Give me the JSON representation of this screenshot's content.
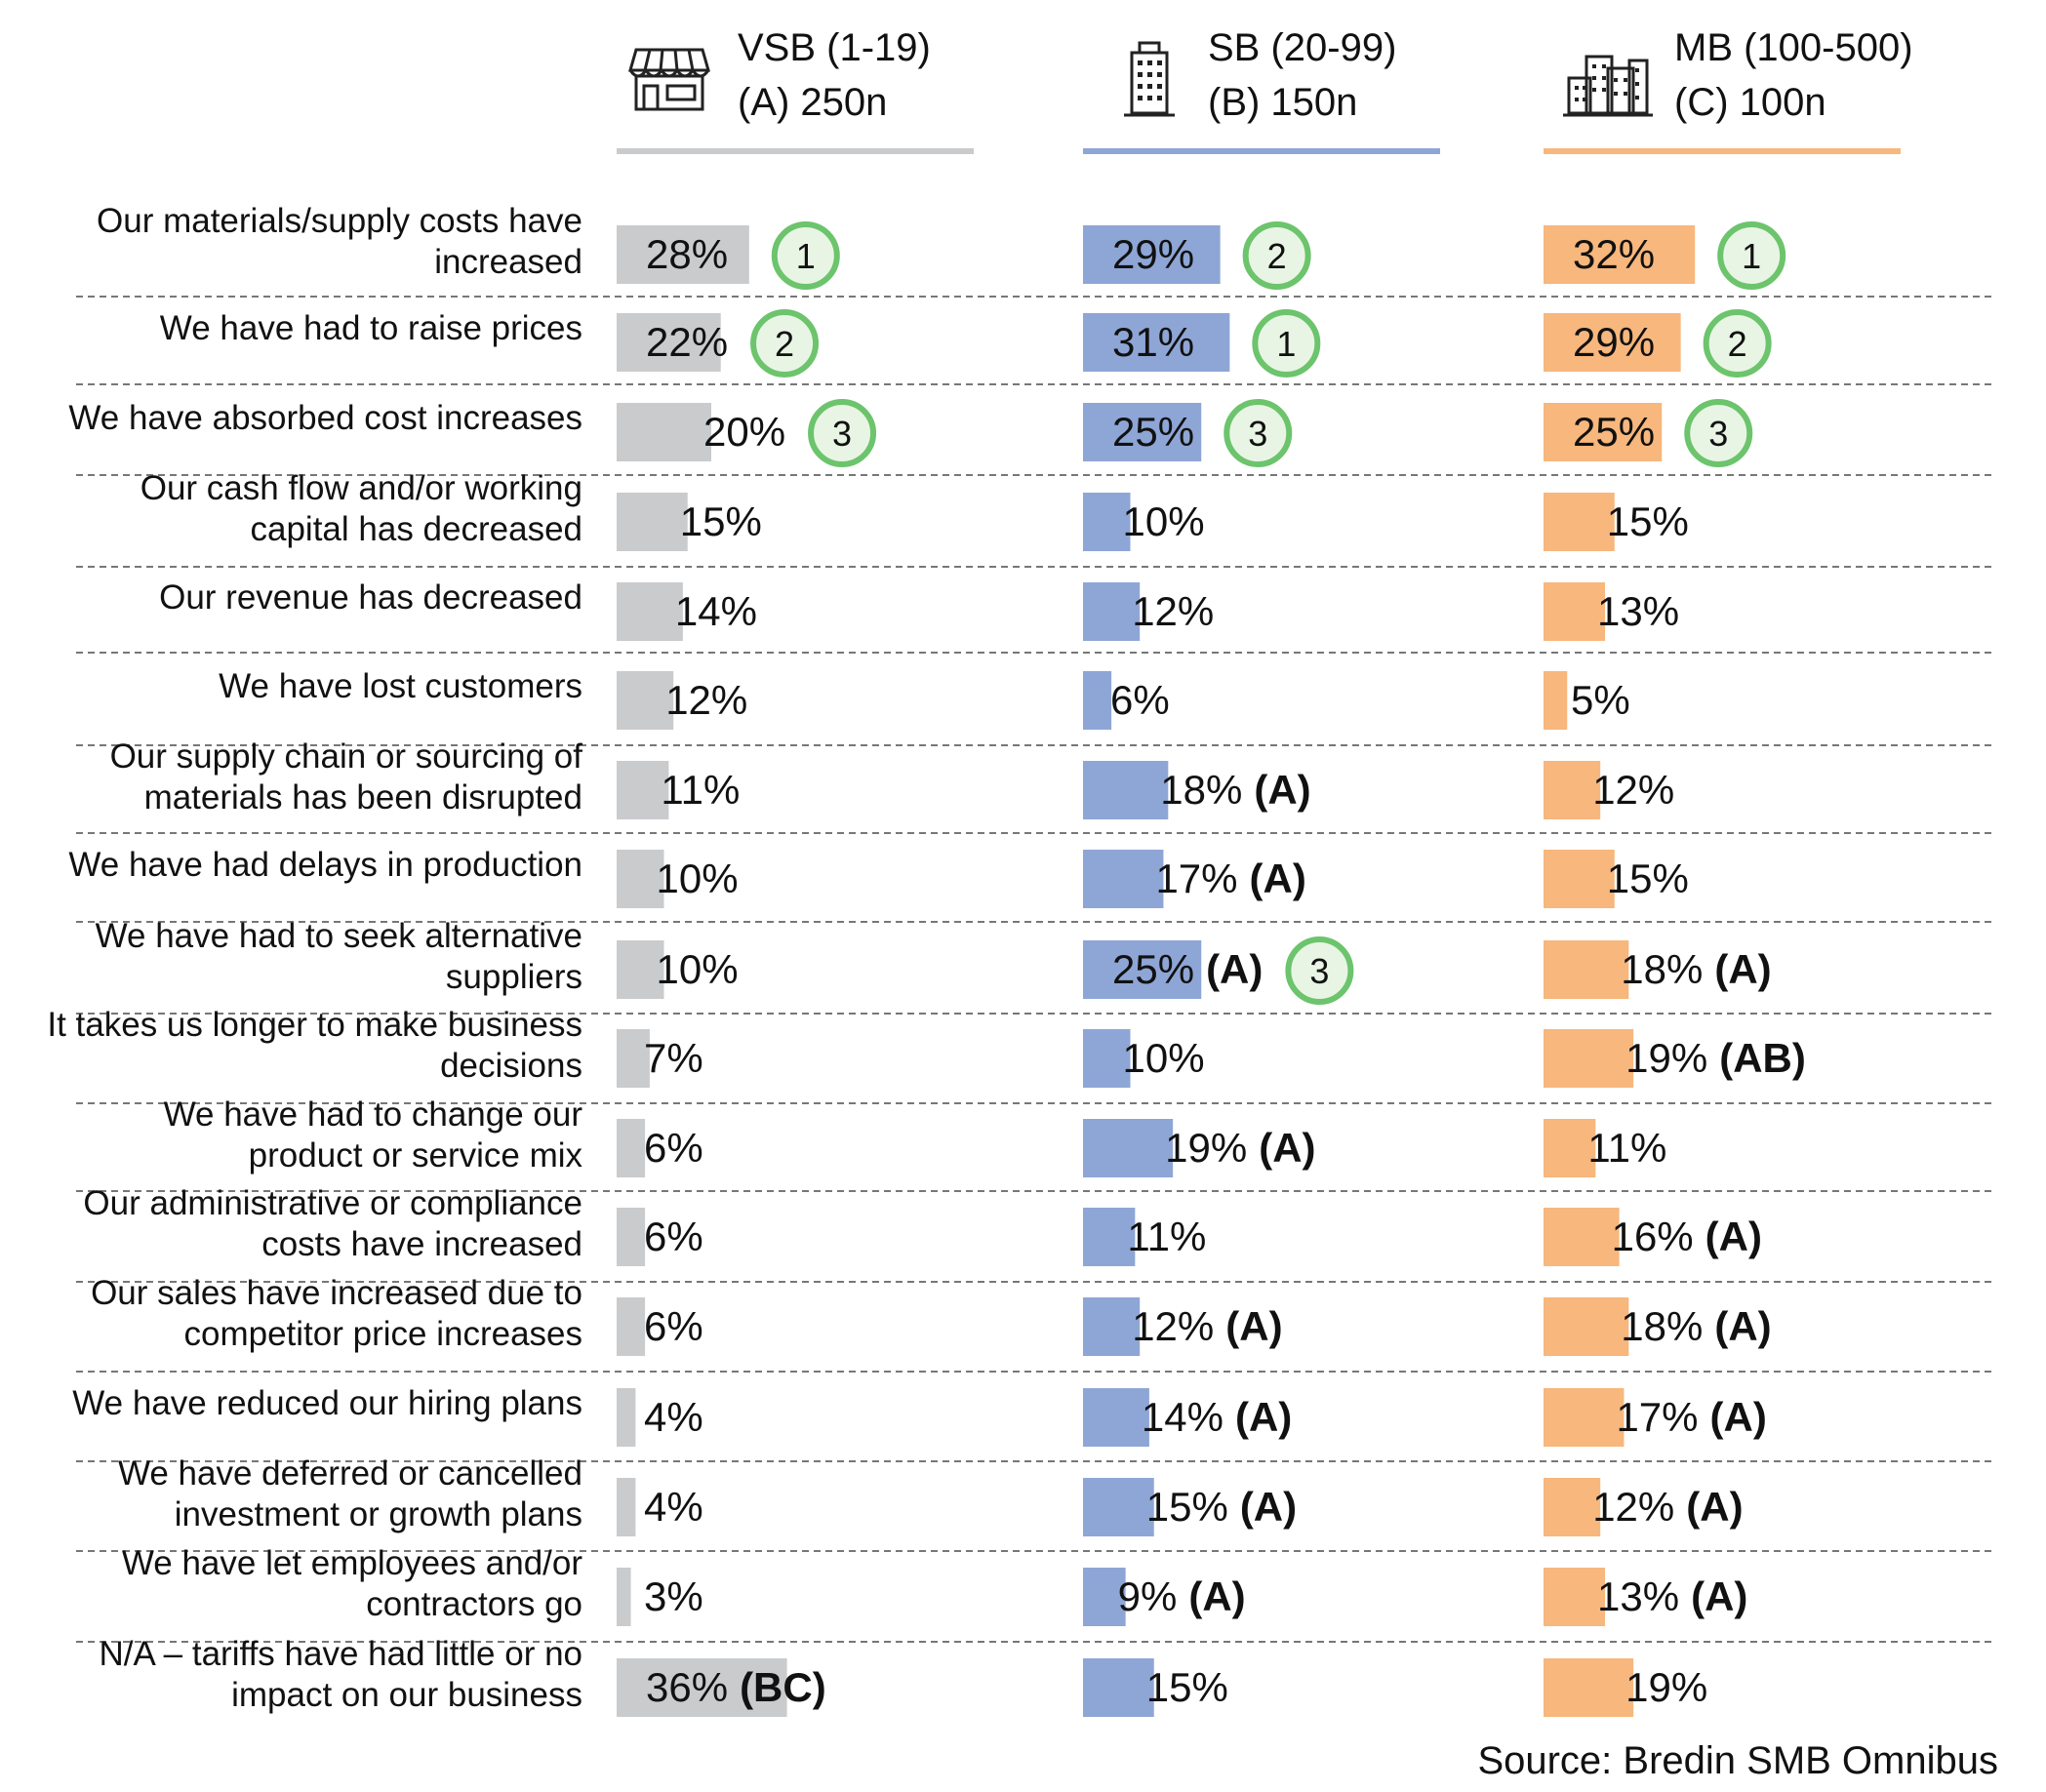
{
  "chart_data": {
    "type": "bar",
    "orientation": "horizontal",
    "title": "",
    "source": "Source: Bredin SMB Omnibus",
    "colors": {
      "A": "#c9cbcd",
      "B": "#8ea6d6",
      "C": "#f7b77d",
      "rank_circle": "#6cc46c",
      "rank_fill": "#e9f5e4"
    },
    "groups": [
      {
        "key": "A",
        "name": "VSB (1-19)",
        "subtitle": "(A) 250n",
        "icon": "storefront-icon"
      },
      {
        "key": "B",
        "name": "SB (20-99)",
        "subtitle": "(B) 150n",
        "icon": "office-building-icon"
      },
      {
        "key": "C",
        "name": "MB (100-500)",
        "subtitle": "(C) 100n",
        "icon": "city-buildings-icon"
      }
    ],
    "categories": [
      [
        "Our materials/supply costs have",
        "increased"
      ],
      [
        "We have had to raise prices"
      ],
      [
        "We have absorbed cost increases"
      ],
      [
        "Our cash flow and/or working",
        "capital has decreased"
      ],
      [
        "Our revenue has decreased"
      ],
      [
        "We have lost customers"
      ],
      [
        "Our supply chain or sourcing of",
        "materials has been disrupted"
      ],
      [
        "We have had delays in production"
      ],
      [
        "We have had to seek alternative",
        "suppliers"
      ],
      [
        "It takes us longer to make business",
        "decisions"
      ],
      [
        "We have had to change our",
        "product or service mix"
      ],
      [
        "Our administrative or compliance",
        "costs have increased"
      ],
      [
        "Our sales have increased due to",
        "competitor price increases"
      ],
      [
        "We have reduced our hiring plans"
      ],
      [
        "We have deferred or cancelled",
        "investment or growth plans"
      ],
      [
        "We have let employees and/or",
        "contractors go"
      ],
      [
        "N/A – tariffs have had little or no",
        "impact on our business"
      ]
    ],
    "unit": "%",
    "series": [
      {
        "key": "A",
        "values": [
          28,
          22,
          20,
          15,
          14,
          12,
          11,
          10,
          10,
          7,
          6,
          6,
          6,
          4,
          4,
          3,
          36
        ],
        "sig": [
          "",
          "",
          "",
          "",
          "",
          "",
          "",
          "",
          "",
          "",
          "",
          "",
          "",
          "",
          "",
          "",
          "(BC)"
        ],
        "rank": [
          1,
          2,
          3,
          null,
          null,
          null,
          null,
          null,
          null,
          null,
          null,
          null,
          null,
          null,
          null,
          null,
          null
        ]
      },
      {
        "key": "B",
        "values": [
          29,
          31,
          25,
          10,
          12,
          6,
          18,
          17,
          25,
          10,
          19,
          11,
          12,
          14,
          15,
          9,
          15
        ],
        "sig": [
          "",
          "",
          "",
          "",
          "",
          "",
          "(A)",
          "(A)",
          "(A)",
          "",
          "(A)",
          "",
          "(A)",
          "(A)",
          "(A)",
          "(A)",
          ""
        ],
        "rank": [
          2,
          1,
          3,
          null,
          null,
          null,
          null,
          null,
          3,
          null,
          null,
          null,
          null,
          null,
          null,
          null,
          null
        ]
      },
      {
        "key": "C",
        "values": [
          32,
          29,
          25,
          15,
          13,
          5,
          12,
          15,
          18,
          19,
          11,
          16,
          18,
          17,
          12,
          13,
          19
        ],
        "sig": [
          "",
          "",
          "",
          "",
          "",
          "",
          "",
          "",
          "(A)",
          "(AB)",
          "",
          "(A)",
          "(A)",
          "(A)",
          "(A)",
          "(A)",
          ""
        ],
        "rank": [
          1,
          2,
          3,
          null,
          null,
          null,
          null,
          null,
          null,
          null,
          null,
          null,
          null,
          null,
          null,
          null,
          null
        ]
      }
    ]
  }
}
